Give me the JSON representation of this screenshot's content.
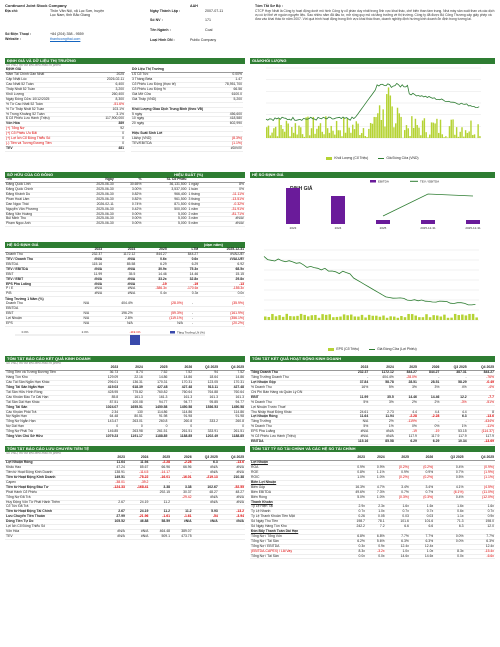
{
  "header": {
    "company_name": "Continued Joint Stock Company",
    "ticker": "AAH",
    "address_label": "Địa chỉ:",
    "address": "Thôn Văn Nội, xã Lục Sơn, huyện Lục Nam, tỉnh Bắc Giang",
    "phone_label": "Số Điện Thoại :",
    "phone": "+84 (204) 358 - 9559",
    "website_label": "Website :",
    "website": "thanhcongthai.com",
    "listing_date_label": "Ngày Thành Lập :",
    "listing_date": "2007-07-11",
    "nv_label": "Số NV :",
    "nv": "171",
    "industry_label": "Tên Ngành :",
    "industry": "Coal",
    "type_label": "Loại Hình DN :",
    "type": "Public Company",
    "desc_title": "Tóm Tắt Sơ Bộ :",
    "desc": "CTCP Hợp Nhất là Công ty hoạt động dưới mô hình Công ty cổ phần duy nhất trong lĩnh vực khai thác, chế biến than tầm trung. Nhà máy sản xuất than và các dịch vụ có lợi thế về nguồn nguyên liệu. Sau nhiều năm đã đầu tư, mở rộng quy mô và tăng trưởng về thị trường. Công ty đã được Bộ Công Thương cấp giấy phép và đưa vào khai thác từ năm 2007. Với quá trình hoạt động trong lĩnh vực khai thác than, doanh nghiệp định hướng kinh doanh ổn định trong tương lai."
  },
  "basic": {
    "title": "ĐỊNH GIÁ VÀ DỮ LIỆU THỊ TRƯỜNG",
    "note": "Số VND, trừ dữ liệu biểu mẫu cổ phiếu",
    "left_head": "ĐỊNH GIÁ",
    "rows_left": [
      [
        "Năm Tài Chính Gần Nhất",
        "2025"
      ],
      [
        "Cập Nhật Lúc",
        "2026-02-11"
      ],
      [
        "Cao Nhất 52 Tuần",
        "6,400"
      ],
      [
        "Thấp Nhất 52 Tuần",
        "3,200"
      ],
      [
        "Khối Lượng",
        "260,400"
      ],
      [
        "Ngày Đóng Cửa: 10/12/2025",
        "8,300"
      ],
      [
        "% Từ Cao Nhất 52 Tuần",
        "-51.6%"
      ],
      [
        "% Từ Thấp Nhất 52 Tuần",
        "103.1%"
      ],
      [
        "% Trong Khoảng 52 Tuần",
        "3.1%"
      ],
      [
        "$ Cổ Phiếu Lưu Hành (Triệu)",
        "117,900,000"
      ],
      [
        "Vốn Hóa",
        "389"
      ],
      [
        "(+) Tổng Nợ",
        "92"
      ],
      [
        "(+) Cổ Phiếu Ưu Đãi",
        "0"
      ],
      [
        "(+) Lợi Ích Cổ Đông Thiểu Số",
        "0"
      ],
      [
        "(-) Tiền và Tương Đương Tiền",
        "0"
      ],
      [
        "TEV",
        "481"
      ]
    ],
    "right_head": "Dữ Liệu Thị Trường",
    "rows_right": [
      [
        "LS Cổ Tức",
        "0.00%"
      ],
      [
        "3 Tháng Beta",
        "1.47"
      ],
      [
        "Cổ Phiếu Lưu Động (thực tế)",
        "78,951,700"
      ],
      [
        "Cổ Phiếu Lưu Động %",
        "66.56"
      ],
      [
        "Giá Mở Cửa",
        "6100.0"
      ],
      [
        "Giá Thấp (VND)",
        "5,200"
      ],
      [
        "",
        ""
      ],
      [
        "Khối Lượng Giao Dịch Trung Bình (theo VĐ)",
        ""
      ],
      [
        "5 ngày",
        "456,600"
      ],
      [
        "10 ngày",
        "418,580"
      ],
      [
        "20 ngày",
        "602,990"
      ],
      [
        "",
        ""
      ],
      [
        "Hiệu Suất Sinh Lời",
        ""
      ],
      [
        "Lãi/cp (VND)",
        "(8.3%)"
      ],
      [
        "TEV/EBITDA",
        "(1.1%)"
      ],
      [
        "",
        "#DIV/0!"
      ]
    ]
  },
  "price_chart": {
    "title": "GIÁ/KHỐI LƯỢNG",
    "legend_vol": "Khối Lượng (Cổ Triệu)",
    "legend_price": "Giá Đóng Cửa (VND)"
  },
  "eps_table": {
    "title": "SỞ HỮU CỦA CỔ ĐÔNG",
    "mid": "HIỆU SUẤT (%)",
    "headers": [
      "Tên",
      "Ngày",
      "%",
      "SL Cổ Phiếu"
    ],
    "rows": [
      [
        "Đặng Quốc Linh",
        "2025-06-30",
        "30.65%",
        "36,131,500"
      ],
      [
        "Đặng Quốc Chính",
        "2025-06-30",
        "3.00%",
        "3,537,000"
      ],
      [
        "Đặng Khánh Du",
        "2025-06-30",
        "0.82%",
        "966,400"
      ],
      [
        "Phan Hoài Lâm",
        "2025-06-30",
        "0.82%",
        "961,500"
      ],
      [
        "Dan Ngọc Thái",
        "2026-02-11",
        "0.74%",
        "871,500"
      ],
      [
        "Nguyễn Văn Phương",
        "2025-06-30",
        "0.42%",
        "500,000"
      ],
      [
        "Đặng Văn Hoàng",
        "2025-06-30",
        "0.00%",
        "5,000"
      ],
      [
        "Bùi Minh Thu",
        "2025-06-30",
        "0.00%",
        "5,000"
      ],
      [
        "Phạm Ngọc Anh",
        "2025-06-30",
        "0.00%",
        "5,000"
      ]
    ],
    "perf_rows": [
      [
        "1 ngày",
        "8%"
      ],
      [
        "1 tuần",
        "0%"
      ],
      [
        "1 tháng",
        "-11.11%"
      ],
      [
        "3 tháng",
        "-13.51%"
      ],
      [
        "6 tháng",
        "-0.32%"
      ],
      [
        "1 năm",
        "-31.91%"
      ],
      [
        "2 năm",
        "-81.71%"
      ],
      [
        "3 năm",
        "#N/A!"
      ],
      [
        "5 năm",
        "#N/A!"
      ]
    ]
  },
  "val_chart": {
    "title": "HỆ SỐ ĐỊNH GIÁ",
    "heading": "ĐỊNH GIÁ",
    "legend_a": "EBITDA",
    "legend_b": "TEV / EBITDA",
    "x": [
      "2023",
      "2024",
      "2025",
      "2025-12-31",
      "2025-12-31"
    ]
  },
  "multiples": {
    "title": "HỆ SỐ ĐỊNH GIÁ",
    "unit": "(dạn năm)",
    "headers": [
      "",
      "2023",
      "2024",
      "2025",
      "LTM",
      "2025-12-31"
    ],
    "rows": [
      [
        "Doanh Thu",
        "232.37",
        "1172.12",
        "844.27",
        "844.27",
        "#VALUE!"
      ],
      [
        "TEV / Doanh Thu",
        "#N/A",
        "#N/A",
        "0.6x",
        "0.6x",
        "#VALUE!"
      ],
      [
        "EBITDA",
        "115.16",
        "85.58",
        "6.29",
        "6.29",
        "6.92"
      ],
      [
        "TEV / EBITDA",
        "#N/A",
        "#N/A",
        "30.9x",
        "75.3x",
        "68.5x"
      ],
      [
        "EBIT",
        "11.99",
        "35.5",
        "14.46",
        "14.46",
        "15.15"
      ],
      [
        "TEV / EBIT",
        "#N/A",
        "#N/A",
        "33.2x",
        "32.8x",
        "29.8x"
      ],
      [
        "EPS Pha Loãng",
        "#N/A",
        "#N/A",
        "-19",
        "-19",
        "-13"
      ],
      [
        "P / E",
        "#N/A",
        "#N/A",
        "-386.3x",
        "-170.6x",
        "-155.3x"
      ],
      [
        "P/B",
        "#N/A",
        "#N/A",
        "0.4x",
        "0.3x",
        "0.0x"
      ]
    ],
    "growth_title": "Tăng Trưởng 1 Năm (%)",
    "growth_rows": [
      [
        "Doanh Thu",
        "N/A",
        "404.4%",
        "(28.0%)",
        "-",
        "(35.9%)"
      ],
      [
        "EBITDA",
        "",
        "",
        "",
        "",
        ""
      ],
      [
        "EBIT",
        "N/A",
        "196.2%",
        "(59.3%)",
        "-",
        "(161.9%)"
      ],
      [
        "Lợi Nhuận",
        "N/A",
        "2.8%",
        "(119.1%)",
        "-",
        "(356.1%)"
      ],
      [
        "EPS",
        "N/A",
        "N/A",
        "N/A",
        "-",
        "(20.2%)"
      ]
    ],
    "pie_labels": [
      "0.0%",
      "2.0%",
      "-119.1%"
    ],
    "pie_legend": "Tăng Trưởng LN (%)"
  },
  "eps_chart": {
    "legend_a": "EPS (Cổ Triệu)",
    "legend_b": "Giá Đóng Cửa (Lợi Phiếu)"
  },
  "income": {
    "title": "TÓM TẮT BÁO CÁO KẾT QUẢ KINH DOANH",
    "note": "Số VND, trừ dữ liệu biểu mẫu cổ phiếu",
    "headers": [
      "",
      "2023",
      "2024",
      "2025",
      "2026",
      "Q3 2025",
      "Q4 2025"
    ],
    "rows": [
      [
        "Tổng Tiền và Tương Đương Tiền",
        "36.73",
        "8.74",
        "7.52",
        "7.52",
        "94",
        "7.52"
      ],
      [
        "Hàng Tồn Kho",
        "129.09",
        "22.16",
        "14.86",
        "14.86",
        "18.64",
        "14.86"
      ],
      [
        "Các Tài Sản Ngắn Hạn Khác",
        "296.01",
        "136.31",
        "170.31",
        "170.31",
        "123.05",
        "170.31"
      ],
      [
        "Tổng Tài Sản Ngắn Hạn",
        "419.03",
        "618.39",
        "427.48",
        "427.48",
        "513.11",
        "427.48"
      ],
      [
        "Tài Sản Hữu Hình Ròng",
        "428.95",
        "775.82",
        "760.82",
        "760.64",
        "764.88",
        "760.64"
      ],
      [
        "Các Khoản Đầu Tư Dài Hạn",
        "85.8",
        "161.3",
        "161.3",
        "161.3",
        "161.3",
        "161.3"
      ],
      [
        "Tài Sản Dài Hạn Khác",
        "87.51",
        "100.08",
        "94.77",
        "94.77",
        "95.85",
        "94.77"
      ],
      [
        "Tổng Tài Sản",
        "1024.07",
        "1655.51",
        "1450.58",
        "1450.58",
        "1536.53",
        "1450.58"
      ],
      [
        "Các Khoản Phải Trả",
        "2.34",
        "130",
        "114.86",
        "114.86",
        "",
        "114.86"
      ],
      [
        "Nợ Ngắn Hạn",
        "64.48",
        "80.51",
        "91.98",
        "91.98",
        "",
        "91.98"
      ],
      [
        "Tổng Nợ Ngắn Hạn",
        "143.47",
        "263.01",
        "260.8",
        "260.8",
        "333.2",
        "260.8"
      ],
      [
        "Nợ Dài Hạn",
        "0",
        "0",
        "0",
        "0",
        "",
        "0"
      ],
      [
        "Tổng Nợ Phải Trả",
        "146.85",
        "263.98",
        "261.51",
        "261.51",
        "333.91",
        "261.51"
      ],
      [
        "Tổng Vốn Chủ Sở Hữu",
        "1079.23",
        "1191.17",
        "1188.85",
        "1188.85",
        "1202.49",
        "1188.85"
      ]
    ]
  },
  "cashsum": {
    "title": "TÓM TẮT KẾT QUẢ HOẠT ĐỘNG KINH DOANH",
    "headers": [
      "",
      "2023",
      "2024",
      "2025",
      "2026",
      "Q3 2025",
      "Q4 2025"
    ],
    "rows": [
      [
        "Tổng Doanh Thu",
        "232.37",
        "1172.12",
        "844.27",
        "844.27",
        "387.31",
        "844.27"
      ],
      [
        "Tăng Trưởng Doanh Thu",
        "-",
        "404.4%",
        "-28.0%",
        "-",
        "-",
        "-76%"
      ],
      [
        "Lợi Nhuận Gộp",
        "37.84",
        "58.78",
        "28.51",
        "28.51",
        "58.29",
        "-0.49"
      ],
      [
        "% Doanh Thu",
        "16%",
        "5%",
        "3%",
        "3%",
        "4%",
        "-4%"
      ],
      [
        "Chi Phí Bán Hàng và Quản Lý DN",
        "",
        "",
        "",
        "",
        "",
        ""
      ],
      [
        "EBIT",
        "11.99",
        "35.5",
        "14.46",
        "14.46",
        "12.2",
        "-7.7"
      ],
      [
        "% Doanh Thu",
        "5%",
        "3%",
        "2%",
        "2%",
        "-3%",
        "-51%"
      ],
      [
        "Lợi Nhuận Trước Thuế",
        "",
        "",
        "",
        "",
        "",
        ""
      ],
      [
        "Thu Nhập Hoạt Động Khác",
        "24.61",
        "2.73",
        "4.4",
        "4.4",
        "4.4",
        "8"
      ],
      [
        "Lợi Nhuận Ròng",
        "11.64",
        "11.94",
        "-2.28",
        "-2.28",
        "6.3",
        "-13.6"
      ],
      [
        "Tăng Trưởng",
        "N/A",
        "2%",
        "-119%",
        "-",
        "-",
        "-434%"
      ],
      [
        "% Doanh Thu",
        "5%",
        "1%",
        "0%",
        "0%",
        "1%",
        "-11%"
      ],
      [
        "EPS Pha Loãng",
        "#N/A",
        "#N/A",
        "-19",
        "-19",
        "53.15",
        "(114.37)"
      ],
      [
        "% Cổ Phiếu Lưu Hành (Triệu)",
        "#N/A",
        "#N/A",
        "117.9",
        "117.9",
        "117.9",
        "117.9"
      ],
      [
        "EBITDA",
        "115.16",
        "85.58",
        "6.29",
        "6.29",
        "10.34",
        "-13.69"
      ]
    ]
  },
  "cf": {
    "title": "TÓM TẮT BÁO CÁO LƯU CHUYỂN TIỀN TỆ",
    "note": "Số VND, trừ dữ liệu biểu mẫu cổ phiếu",
    "headers": [
      "",
      "2023",
      "2024",
      "2025",
      "2026",
      "Q3 2025",
      "Q4 2025"
    ],
    "rows": [
      [
        "Lợi Nhuận Ròng",
        "11.64",
        "11.94",
        "-2.28",
        "-2.28",
        "6.3",
        "-13.6"
      ],
      [
        "Khấu Hao",
        "47.24",
        "85.67",
        "66.96",
        "66.96",
        "#N/A",
        "#N/A"
      ],
      [
        "Tiền từ Hoạt Động Kinh Doanh",
        "138.91",
        "-114.5",
        "-14.17",
        "-",
        "#N/A",
        "#N/A"
      ],
      [
        "Tiền từ Hoạt Động Kinh Doanh",
        "149.51",
        "-78.22",
        "-16.01",
        "-16.01",
        "-219.13",
        "210.38"
      ],
      [
        "Capex",
        "-38.01",
        "-39.2",
        "-",
        "",
        "",
        ""
      ],
      [
        "Tiền từ Hoạt Động Đầu Tư",
        "-124.33",
        "-168.41",
        "3.38",
        "3.38",
        "102.67",
        "-52.55"
      ],
      [
        "Phát Hành Cổ Phiếu",
        "",
        "",
        "292.15",
        "30.37",
        "48.27",
        "48.27"
      ],
      [
        "Tổng Nợ Đã Trả",
        "",
        "",
        "",
        "-29.42",
        "#N/A",
        "#N/A"
      ],
      [
        "Huy Động Vốn Từ Phát Hành Thêm",
        "2.67",
        "24.19",
        "11.2",
        "",
        "#N/A",
        "#N/A"
      ],
      [
        "Cổ Tức Đã Trả",
        "",
        "",
        "",
        "",
        "",
        ""
      ],
      [
        "Tiền từ Hoạt Động Tài Chính",
        "2.67",
        "24.19",
        "11.2",
        "11.2",
        "5.93",
        "-13.2"
      ],
      [
        "Lưu Chuyển Tiền Thuần",
        "27.99",
        "-21.96",
        "-1.61",
        "-1.61",
        "-54",
        "-3.94"
      ],
      [
        "Dòng Tiền Tự Do",
        "105.52",
        "46.88",
        "58.59",
        "#N/A",
        "#N/A",
        "#N/A"
      ],
      [
        "Lợi Ích Cổ Đông Thiểu Số",
        "",
        "",
        "",
        "",
        "",
        ""
      ],
      [
        "Vốn Hóa",
        "#N/A",
        "#N/A",
        "464.48",
        "389.07",
        "",
        ""
      ],
      [
        "TEV",
        "#N/A",
        "#N/A",
        "509.1",
        "473.75",
        "",
        ""
      ]
    ]
  },
  "ratios": {
    "title": "TÓM TẮT TỶ SỐ TÀI CHÍNH VÀ CÁC HỆ SỐ TÀI CHÍNH",
    "headers": [
      "",
      "2023",
      "2024",
      "2025",
      "2026",
      "Q3 2025",
      "Q4 2025"
    ],
    "groups": [
      {
        "head": "Lợi Nhuận",
        "rows": [
          [
            "ROA",
            "0.9%",
            "0.9%",
            "(0.2%)",
            "(0.2%)",
            "0.4%",
            "(0.9%)"
          ],
          [
            "ROE",
            "0.8%",
            "1.1%",
            "0.9%",
            "0.9%",
            "0.7%",
            "(1.9%)"
          ],
          [
            "ROIC",
            "1.0%",
            "1.0%",
            "(0.2%)",
            "(0.2%)",
            "0.5%",
            "(1.1%)"
          ]
        ]
      },
      {
        "head": "Biên Lợi Nhuận",
        "rows": [
          [
            "Biên Gộp",
            "16.3%",
            "4.7%",
            "3.4%",
            "3.4%",
            "4.1%",
            "(4.5%)"
          ],
          [
            "Biên EBITDA",
            "49.6%",
            "7.3%",
            "0.7%",
            "0.7%",
            "(6.1%)",
            "(11.0%)"
          ],
          [
            "Biên Ròng",
            "5.0%",
            "1.0%",
            "(0.3%)",
            "(0.3%)",
            "0.4%",
            "(12.0%)"
          ]
        ]
      },
      {
        "head": "Thanh Khoản",
        "rows": [
          [
            "Tỷ Lệ Hiện Tại",
            "2.9x",
            "2.3x",
            "1.6x",
            "1.6x",
            "1.6x",
            "1.6x"
          ],
          [
            "Tỷ Lệ Nhanh",
            "0.7x",
            "1.0x",
            "0.7x",
            "0.7x",
            "0.6x",
            "0.7x"
          ],
          [
            "Tỷ Lệ Thanh Khoản Tiền Mặt",
            "0.26",
            "0.05",
            "0.03",
            "0.03",
            "1.1x",
            "0.9x"
          ],
          [
            "Số Ngày Thu Tiền",
            "198.7",
            "78.1",
            "101.6",
            "101.6",
            "71.3",
            "198.0"
          ],
          [
            "Số Ngày Hàng Tồn Kho",
            "242.2",
            "7.2",
            "6.6",
            "6.6",
            "6.3",
            "12.0"
          ]
        ]
      },
      {
        "head": "Đòn Bẩy Thanh Toán Dài Hạn",
        "rows": [
          [
            "Tổng Nợ / Tổng Vốn",
            "6.8%",
            "6.8%",
            "7.7%",
            "7.7%",
            "0.0%",
            "7.7%"
          ],
          [
            "Tổng Nợ / Tài Sản",
            "6.2%",
            "5.6%",
            "6.3%",
            "6.3%",
            "0.0%",
            "6.3%"
          ],
          [
            "Tổng Nợ / EBITDA",
            "0.3x",
            "0.9x",
            "12.4x",
            "12.4x",
            "",
            "12.4x"
          ],
          [
            "(EBITDA-CAPEX) / Lãi Vay",
            "8.3x",
            "-3.2x",
            "1.0x",
            "1.0x",
            "8.3x",
            "-15.4x"
          ],
          [
            "Tổng Nợ / Tài Sản",
            "0.0x",
            "0.0x",
            "14.6x",
            "14.6x",
            "0.0x",
            "-6.6x"
          ]
        ]
      }
    ]
  }
}
